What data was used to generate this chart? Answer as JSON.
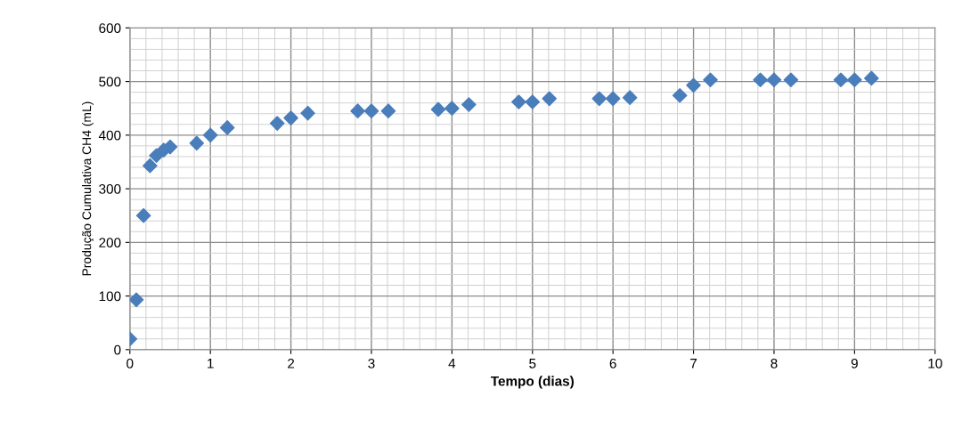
{
  "chart_data": {
    "type": "scatter",
    "xlabel": "Tempo (dias)",
    "ylabel": "Produção Cumulativa CH4 (mL)",
    "x": [
      0,
      0.08,
      0.17,
      0.25,
      0.33,
      0.42,
      0.5,
      0.83,
      1.0,
      1.21,
      1.83,
      2.0,
      2.21,
      2.83,
      3.0,
      3.21,
      3.83,
      4.0,
      4.21,
      4.83,
      5.0,
      5.21,
      5.83,
      6.0,
      6.21,
      6.83,
      7.0,
      7.21,
      7.83,
      8.0,
      8.21,
      8.83,
      9.0,
      9.21
    ],
    "series": [
      {
        "color": "#4a7ebb",
        "values": [
          20,
          93,
          250,
          343,
          362,
          372,
          378,
          385,
          400,
          414,
          422,
          432,
          441,
          445,
          445,
          445,
          448,
          450,
          457,
          462,
          462,
          468,
          468,
          468,
          470,
          474,
          493,
          503,
          503,
          503,
          503,
          503,
          503,
          506
        ]
      }
    ],
    "xlim": [
      0,
      10
    ],
    "xticks": [
      0,
      1,
      2,
      3,
      4,
      5,
      6,
      7,
      8,
      9,
      10
    ],
    "ylim": [
      0,
      600
    ],
    "yticks": [
      0,
      100,
      200,
      300,
      400,
      500,
      600
    ],
    "grid": true,
    "marker": "diamond",
    "legend": false
  }
}
